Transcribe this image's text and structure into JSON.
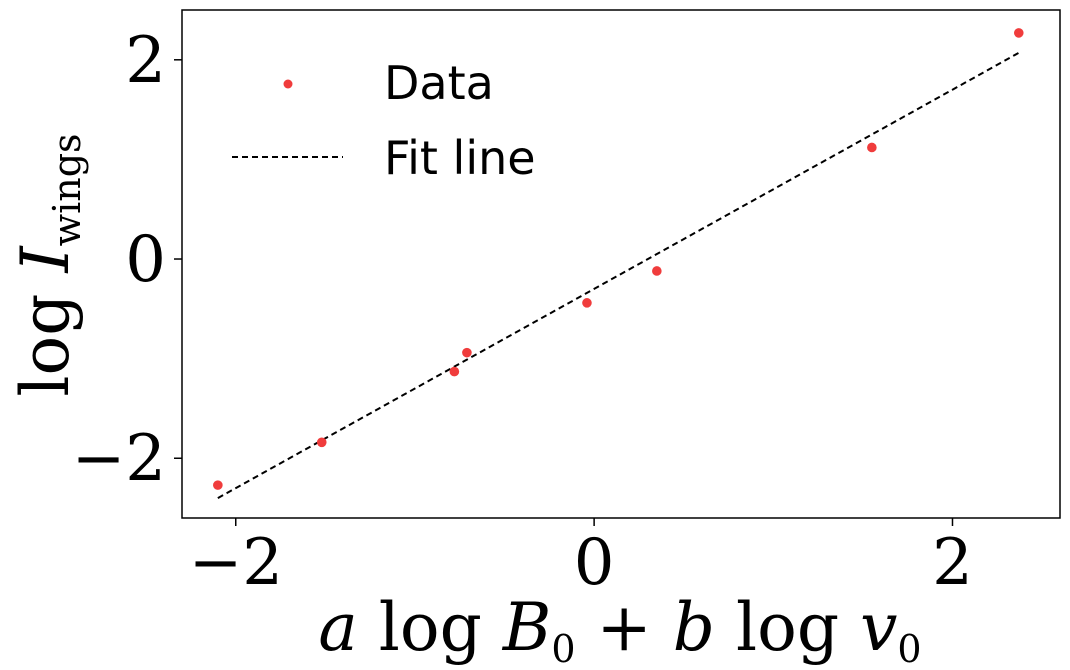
{
  "chart_data": {
    "type": "scatter",
    "xlim": [
      -2.3,
      2.6
    ],
    "ylim": [
      -2.6,
      2.5
    ],
    "xticks": [
      -2,
      0,
      2
    ],
    "yticks": [
      -2,
      0,
      2
    ],
    "xtick_labels": [
      "−2",
      "0",
      "2"
    ],
    "ytick_labels": [
      "−2",
      "0",
      "2"
    ],
    "xlabel": "a log B0 + b log v0",
    "ylabel": "log I_wings",
    "grid": false,
    "legend_position": "top-left",
    "series": [
      {
        "name": "Data",
        "kind": "scatter",
        "color": "#f03c3c",
        "points": [
          {
            "x": -2.1,
            "y": -2.27
          },
          {
            "x": -1.52,
            "y": -1.84
          },
          {
            "x": -0.78,
            "y": -1.13
          },
          {
            "x": -0.71,
            "y": -0.94
          },
          {
            "x": -0.04,
            "y": -0.44
          },
          {
            "x": 0.35,
            "y": -0.12
          },
          {
            "x": 1.55,
            "y": 1.12
          },
          {
            "x": 2.37,
            "y": 2.27
          }
        ]
      },
      {
        "name": "Fit line",
        "kind": "line",
        "style": "dashed",
        "color": "#000000",
        "points": [
          {
            "x": -2.1,
            "y": -2.4
          },
          {
            "x": 2.37,
            "y": 2.07
          }
        ]
      }
    ]
  }
}
